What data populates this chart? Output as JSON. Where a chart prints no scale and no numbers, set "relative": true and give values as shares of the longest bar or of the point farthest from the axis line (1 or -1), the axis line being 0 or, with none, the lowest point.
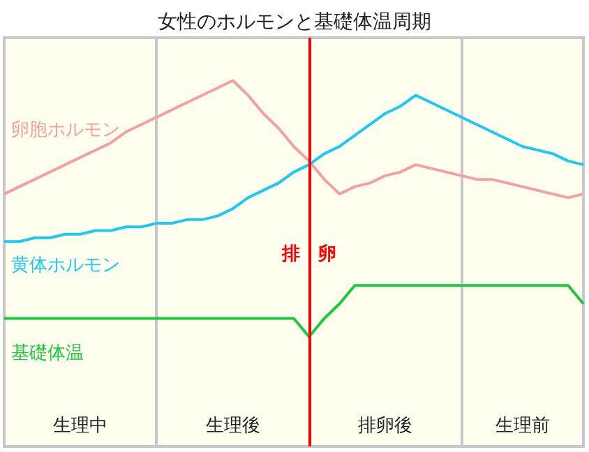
{
  "chart_data": {
    "type": "line",
    "title": "女性のホルモンと基礎体温周期",
    "relative": true,
    "tick_labels": "x",
    "legend": false,
    "grid": "x",
    "marker": "none",
    "categories": [
      null,
      null,
      null,
      null,
      null,
      "生理中",
      null,
      null,
      null,
      null,
      null,
      null,
      null,
      null,
      null,
      "生理後",
      null,
      null,
      null,
      null,
      null,
      null,
      null,
      null,
      null,
      "排卵後",
      null,
      null,
      null,
      null,
      null,
      null,
      null,
      null,
      "生理前",
      null,
      null,
      null,
      null
    ],
    "series": [
      {
        "name": "卵胞ホルモン",
        "color": "#f4a0a0",
        "values": [
          0.69,
          0.71,
          0.73,
          0.75,
          0.77,
          0.79,
          0.81,
          0.83,
          0.86,
          0.88,
          0.9,
          0.92,
          0.94,
          0.96,
          0.98,
          1,
          0.96,
          0.91,
          0.87,
          0.82,
          0.78,
          0.73,
          0.69,
          0.71,
          0.72,
          0.74,
          0.75,
          0.77,
          0.76,
          0.75,
          0.74,
          0.73,
          0.73,
          0.72,
          0.71,
          0.7,
          0.69,
          0.68,
          0.69
        ]
      },
      {
        "name": "黄体ホルモン",
        "color": "#1ec8f0",
        "values": [
          0.56,
          0.56,
          0.57,
          0.57,
          0.58,
          0.58,
          0.59,
          0.59,
          0.6,
          0.6,
          0.61,
          0.61,
          0.62,
          0.62,
          0.63,
          0.65,
          0.68,
          0.7,
          0.72,
          0.75,
          0.77,
          0.8,
          0.82,
          0.85,
          0.88,
          0.91,
          0.93,
          0.96,
          0.94,
          0.92,
          0.9,
          0.88,
          0.86,
          0.84,
          0.82,
          0.81,
          0.8,
          0.78,
          0.77
        ]
      },
      {
        "name": "基礎体温",
        "color": "#1ec83c",
        "values": [
          0.35,
          0.35,
          0.35,
          0.35,
          0.35,
          0.35,
          0.35,
          0.35,
          0.35,
          0.35,
          0.35,
          0.35,
          0.35,
          0.35,
          0.35,
          0.35,
          0.35,
          0.35,
          0.35,
          0.35,
          0.3,
          0.35,
          0.39,
          0.44,
          0.44,
          0.44,
          0.44,
          0.44,
          0.44,
          0.44,
          0.44,
          0.44,
          0.44,
          0.44,
          0.44,
          0.44,
          0.44,
          0.44,
          0.39
        ]
      }
    ],
    "annotations": [
      "排 卵"
    ]
  }
}
